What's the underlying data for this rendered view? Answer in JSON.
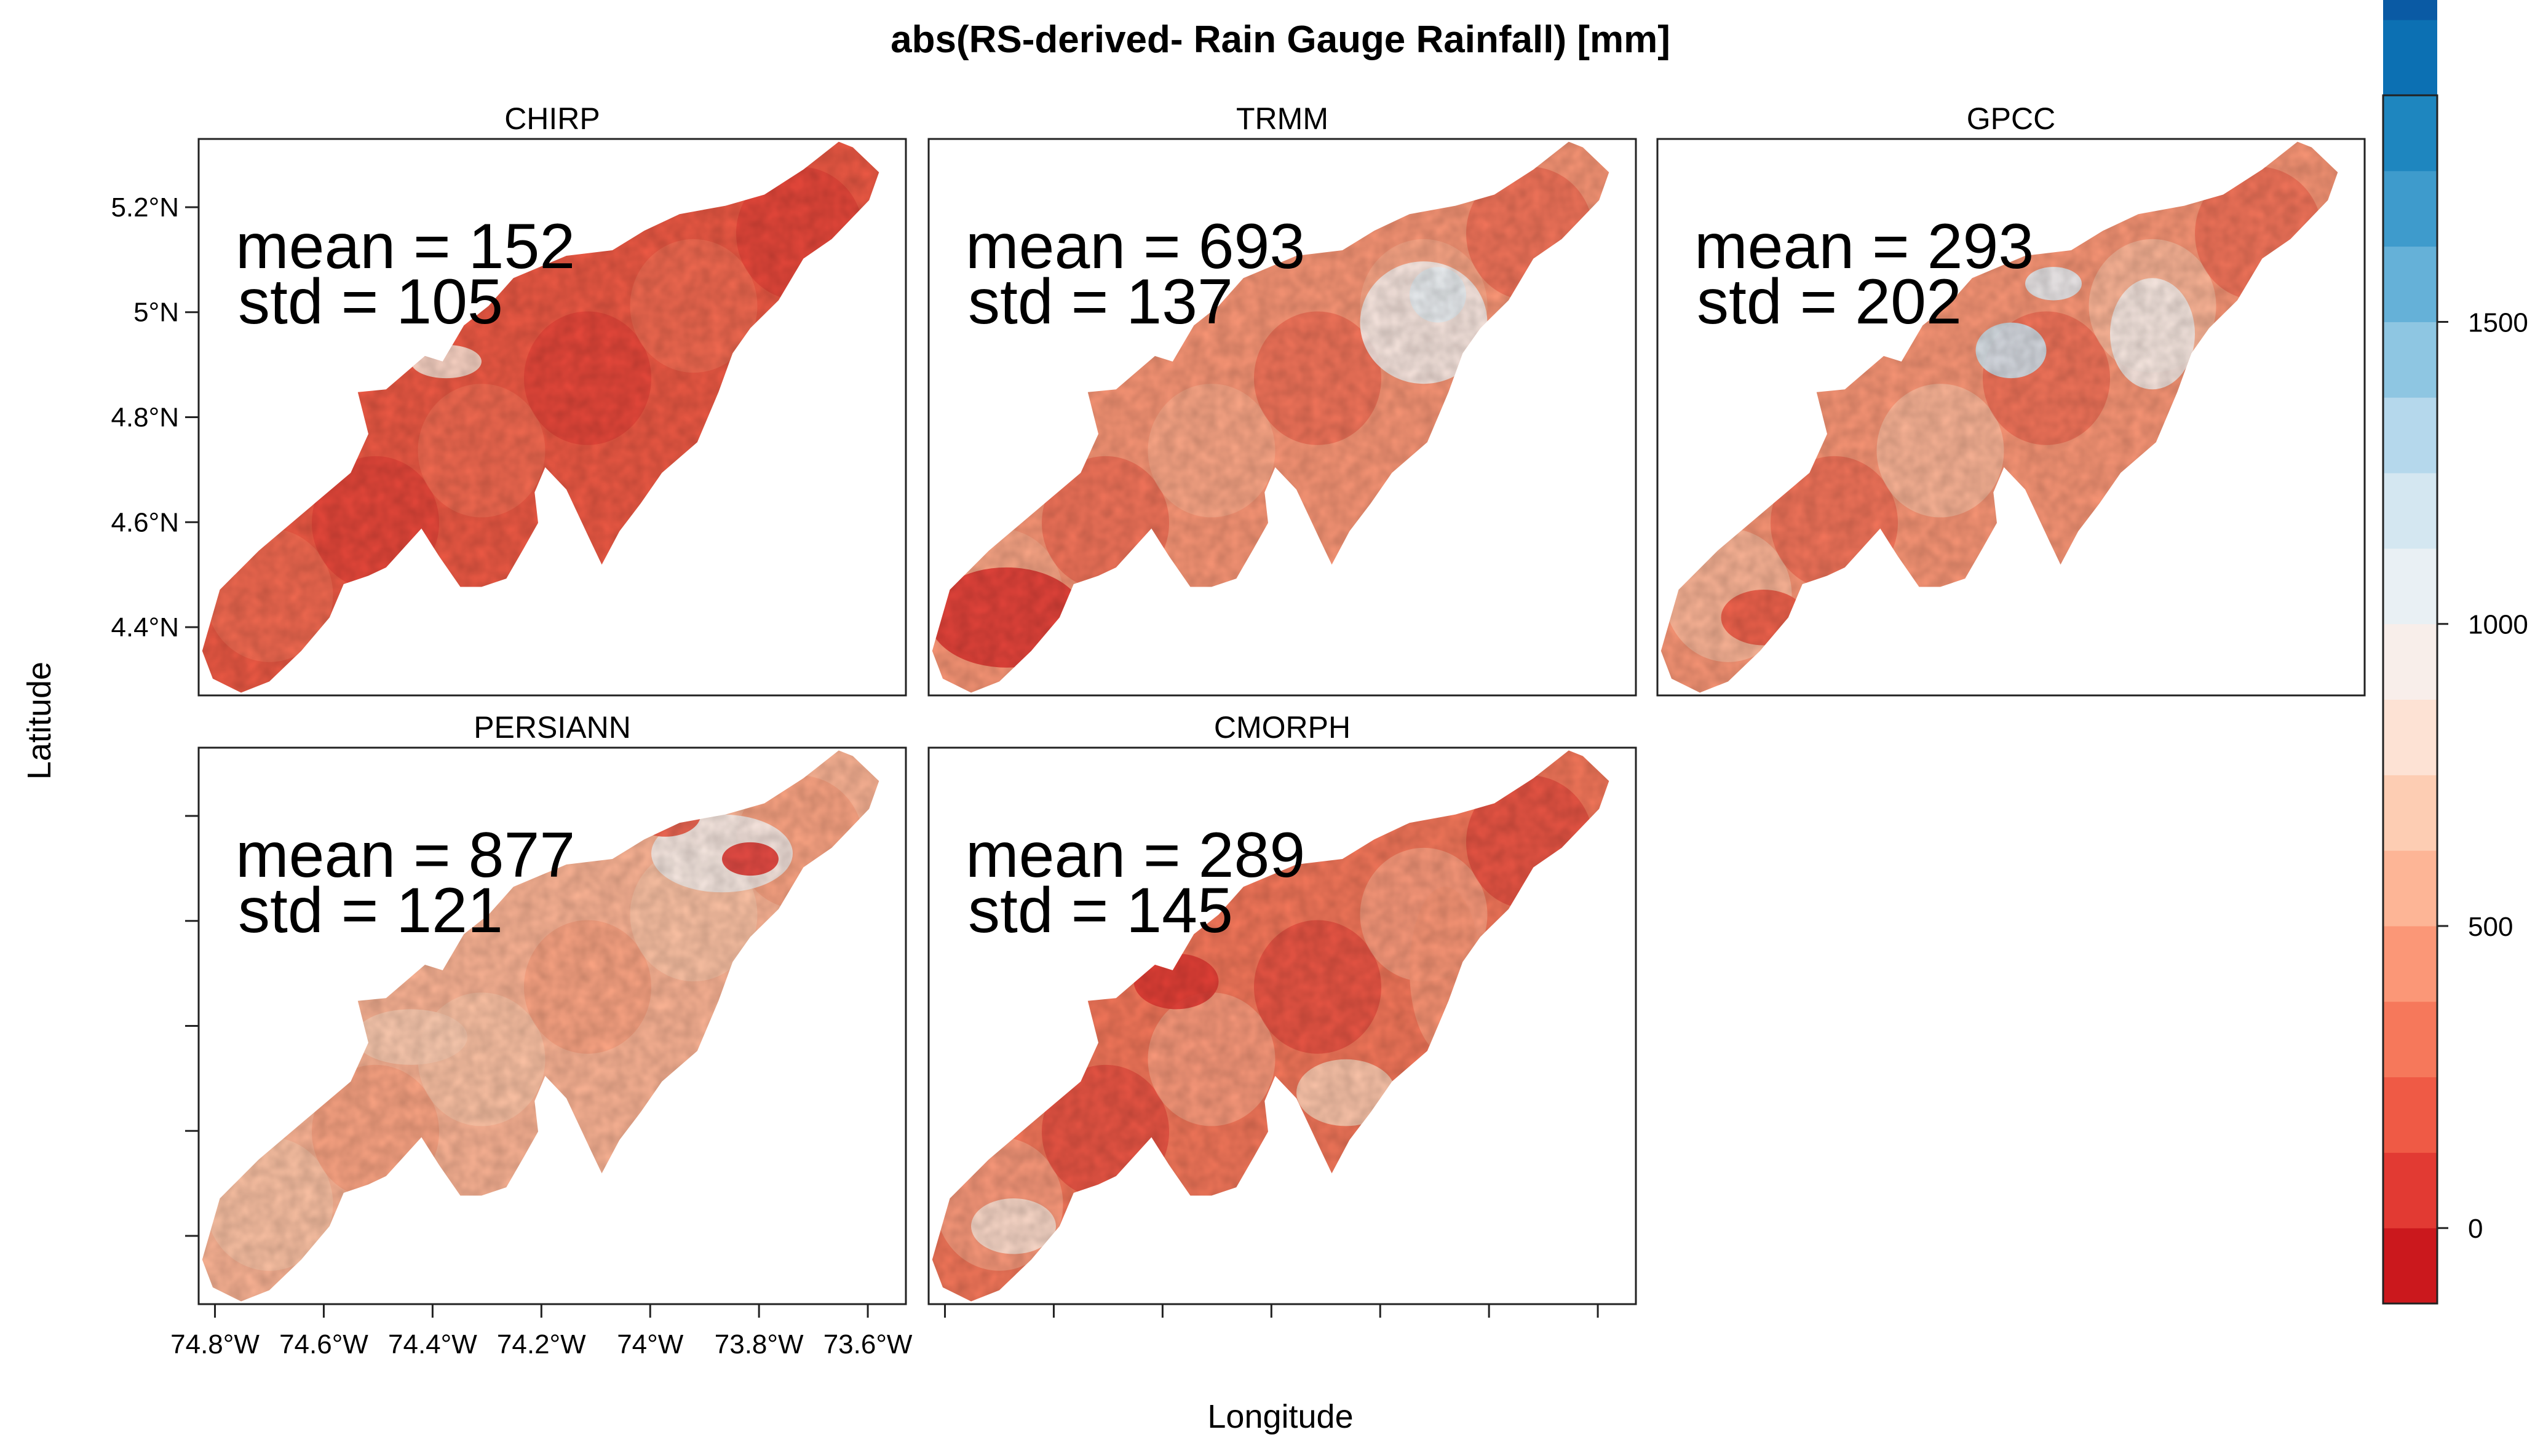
{
  "chart_data": {
    "type": "heatmap",
    "title": "abs(RS-derived- Rain Gauge Rainfall) [mm]",
    "xlabel": "Longitude",
    "ylabel": "Latitude",
    "xlim": [
      -74.83,
      -73.53
    ],
    "ylim": [
      4.27,
      5.33
    ],
    "x_ticks": [
      -74.8,
      -74.6,
      -74.4,
      -74.2,
      -74.0,
      -73.8,
      -73.6
    ],
    "x_tick_labels": [
      "74.8°W",
      "74.6°W",
      "74.4°W",
      "74.2°W",
      "74°W",
      "73.8°W",
      "73.6°W"
    ],
    "y_ticks": [
      4.4,
      4.6,
      4.8,
      5.0,
      5.2
    ],
    "y_tick_labels": [
      "4.4°N",
      "4.6°N",
      "4.8°N",
      "5°N",
      "5.2°N"
    ],
    "panels": [
      {
        "name": "CHIRP",
        "mean_label": "mean = 152",
        "std_label": "std = 105",
        "mean": 152,
        "std": 105
      },
      {
        "name": "TRMM",
        "mean_label": "mean = 693",
        "std_label": "std = 137",
        "mean": 693,
        "std": 137
      },
      {
        "name": "GPCC",
        "mean_label": "mean = 293",
        "std_label": "std = 202",
        "mean": 293,
        "std": 202
      },
      {
        "name": "PERSIANN",
        "mean_label": "mean = 877",
        "std_label": "std = 121",
        "mean": 877,
        "std": 121
      },
      {
        "name": "CMORPH",
        "mean_label": "mean = 289",
        "std_label": "std = 145",
        "mean": 289,
        "std": 145
      }
    ],
    "colorbar": {
      "range": [
        -125,
        1875
      ],
      "step": 125,
      "ticks": [
        0,
        500,
        1000,
        1500
      ],
      "tick_labels": [
        "0",
        "500",
        "1000",
        "1500"
      ],
      "colors": [
        "#cb181d",
        "#e23a33",
        "#ef5a45",
        "#f6785b",
        "#fb9777",
        "#fdb596",
        "#fdcdb3",
        "#fde2d4",
        "#f8eeea",
        "#e9f0f4",
        "#d4e7f1",
        "#b5d8ec",
        "#8ec6e2",
        "#65b1d8",
        "#3e9bcc",
        "#1e86bf",
        "#0c70b3",
        "#0a5aa4"
      ]
    }
  }
}
